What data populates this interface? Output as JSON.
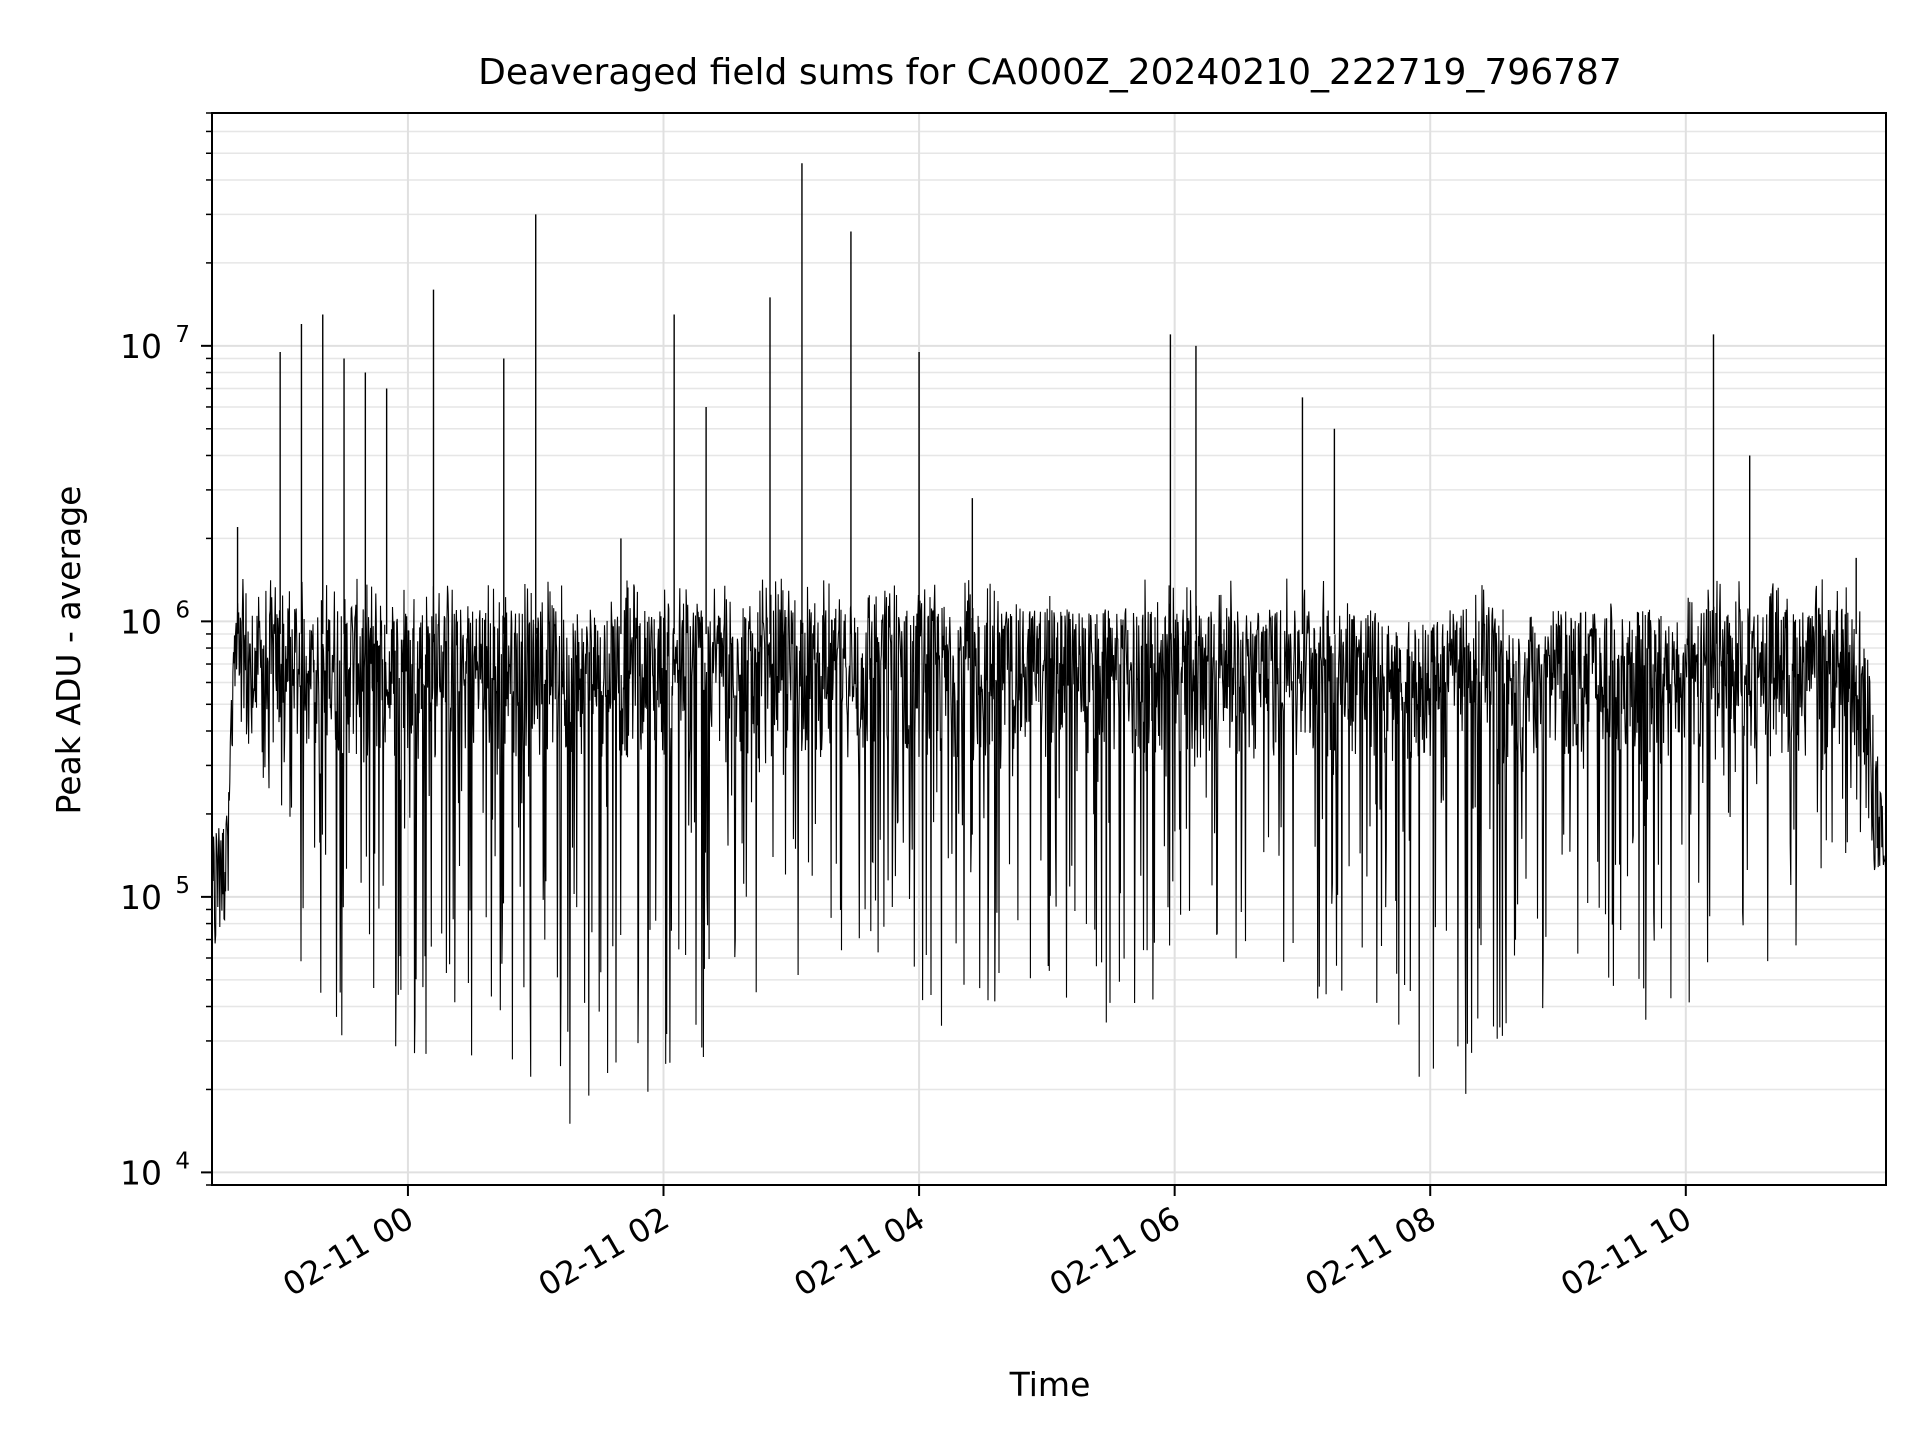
{
  "chart_data": {
    "type": "line",
    "title": "Deaveraged field sums for CA000Z_20240210_222719_796787",
    "xlabel": "Time",
    "ylabel": "Peak ADU - average",
    "yscale": "log",
    "ylim": [
      9000,
      70000000
    ],
    "xlim": [
      "2024-02-10 22:28",
      "2024-02-11 11:34"
    ],
    "grid": true,
    "x_ticks": [
      {
        "t": "2024-02-11 00:00",
        "label": "02-11 00"
      },
      {
        "t": "2024-02-11 02:00",
        "label": "02-11 02"
      },
      {
        "t": "2024-02-11 04:00",
        "label": "02-11 04"
      },
      {
        "t": "2024-02-11 06:00",
        "label": "02-11 06"
      },
      {
        "t": "2024-02-11 08:00",
        "label": "02-11 08"
      },
      {
        "t": "2024-02-11 10:00",
        "label": "02-11 10"
      }
    ],
    "y_ticks": [
      {
        "value": 10000,
        "base": "10",
        "exp": "4"
      },
      {
        "value": 100000,
        "base": "10",
        "exp": "5"
      },
      {
        "value": 1000000,
        "base": "10",
        "exp": "6"
      },
      {
        "value": 10000000,
        "base": "10",
        "exp": "7"
      }
    ],
    "line_color": "#000000",
    "series": [
      {
        "values_description_note_removed": null,
        "x": [
          "2024-02-10 22:28",
          "2024-02-10 22:35",
          "2024-02-10 22:40",
          "2024-02-10 22:47",
          "2024-02-10 22:55",
          "2024-02-10 23:00",
          "2024-02-10 23:10",
          "2024-02-10 23:20",
          "2024-02-10 23:30",
          "2024-02-10 23:40",
          "2024-02-10 23:50",
          "2024-02-11 00:00",
          "2024-02-11 00:12",
          "2024-02-11 00:30",
          "2024-02-11 00:45",
          "2024-02-11 01:00",
          "2024-02-11 01:15",
          "2024-02-11 01:30",
          "2024-02-11 01:40",
          "2024-02-11 01:55",
          "2024-02-11 02:05",
          "2024-02-11 02:20",
          "2024-02-11 02:40",
          "2024-02-11 02:50",
          "2024-02-11 03:05",
          "2024-02-11 03:20",
          "2024-02-11 03:28",
          "2024-02-11 03:45",
          "2024-02-11 04:00",
          "2024-02-11 04:10",
          "2024-02-11 04:25",
          "2024-02-11 04:40",
          "2024-02-11 05:00",
          "2024-02-11 05:20",
          "2024-02-11 05:40",
          "2024-02-11 05:58",
          "2024-02-11 06:10",
          "2024-02-11 06:30",
          "2024-02-11 06:50",
          "2024-02-11 07:00",
          "2024-02-11 07:15",
          "2024-02-11 07:30",
          "2024-02-11 07:45",
          "2024-02-11 08:00",
          "2024-02-11 08:15",
          "2024-02-11 08:25",
          "2024-02-11 08:40",
          "2024-02-11 09:00",
          "2024-02-11 09:20",
          "2024-02-11 09:40",
          "2024-02-11 10:00",
          "2024-02-11 10:13",
          "2024-02-11 10:30",
          "2024-02-11 10:50",
          "2024-02-11 11:05",
          "2024-02-11 11:20",
          "2024-02-11 11:34"
        ],
        "values": [
          150000,
          250000,
          2200000,
          1000000,
          1500000,
          9500000,
          12000000,
          13000000,
          9000000,
          8000000,
          7000000,
          1100000,
          16000000,
          1200000,
          9000000,
          30000000,
          1000000,
          1200000,
          2000000,
          1000000,
          13000000,
          6000000,
          1100000,
          15000000,
          46000000,
          1000000,
          26000000,
          1100000,
          9500000,
          1000000,
          2800000,
          1000000,
          1200000,
          1000000,
          1000000,
          11000000,
          10000000,
          1000000,
          1100000,
          6500000,
          5000000,
          1000000,
          900000,
          950000,
          1000000,
          1400000,
          900000,
          1000000,
          1100000,
          1000000,
          900000,
          11000000,
          4000000,
          1000000,
          1500000,
          1700000,
          150000
        ],
        "lows": [
          130000,
          180000,
          300000,
          200000,
          120000,
          60000,
          50000,
          40000,
          30000,
          28000,
          25000,
          25000,
          22000,
          20000,
          18000,
          20000,
          15000,
          14000,
          16000,
          20000,
          22000,
          25000,
          40000,
          50000,
          45000,
          40000,
          50000,
          45000,
          28000,
          22000,
          40000,
          40000,
          50000,
          30000,
          28000,
          45000,
          60000,
          50000,
          40000,
          35000,
          40000,
          30000,
          20000,
          18000,
          20000,
          15000,
          30000,
          35000,
          30000,
          35000,
          40000,
          35000,
          50000,
          60000,
          120000,
          150000,
          140000
        ]
      }
    ]
  }
}
